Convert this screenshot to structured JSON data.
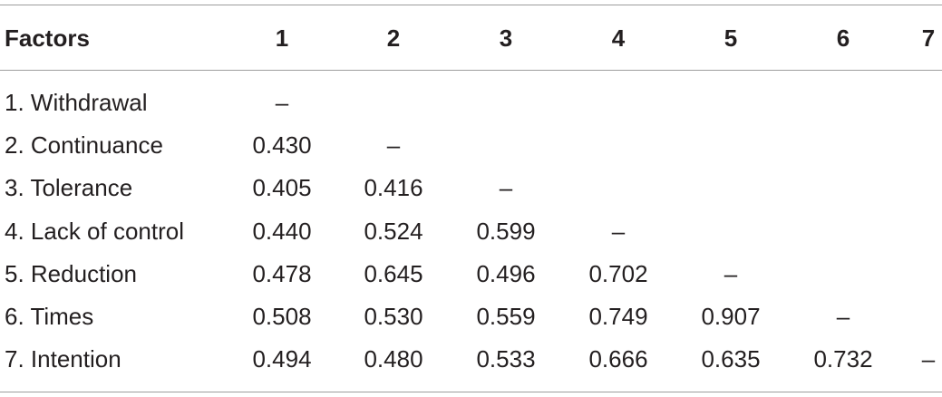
{
  "table": {
    "header": [
      "Factors",
      "1",
      "2",
      "3",
      "4",
      "5",
      "6",
      "7"
    ],
    "rows": [
      [
        "1. Withdrawal",
        "–"
      ],
      [
        "2. Continuance",
        "0.430",
        "–"
      ],
      [
        "3. Tolerance",
        "0.405",
        "0.416",
        "–"
      ],
      [
        "4. Lack of control",
        "0.440",
        "0.524",
        "0.599",
        "–"
      ],
      [
        "5. Reduction",
        "0.478",
        "0.645",
        "0.496",
        "0.702",
        "–"
      ],
      [
        "6. Times",
        "0.508",
        "0.530",
        "0.559",
        "0.749",
        "0.907",
        "–"
      ],
      [
        "7. Intention",
        "0.494",
        "0.480",
        "0.533",
        "0.666",
        "0.635",
        "0.732",
        "–"
      ]
    ]
  }
}
